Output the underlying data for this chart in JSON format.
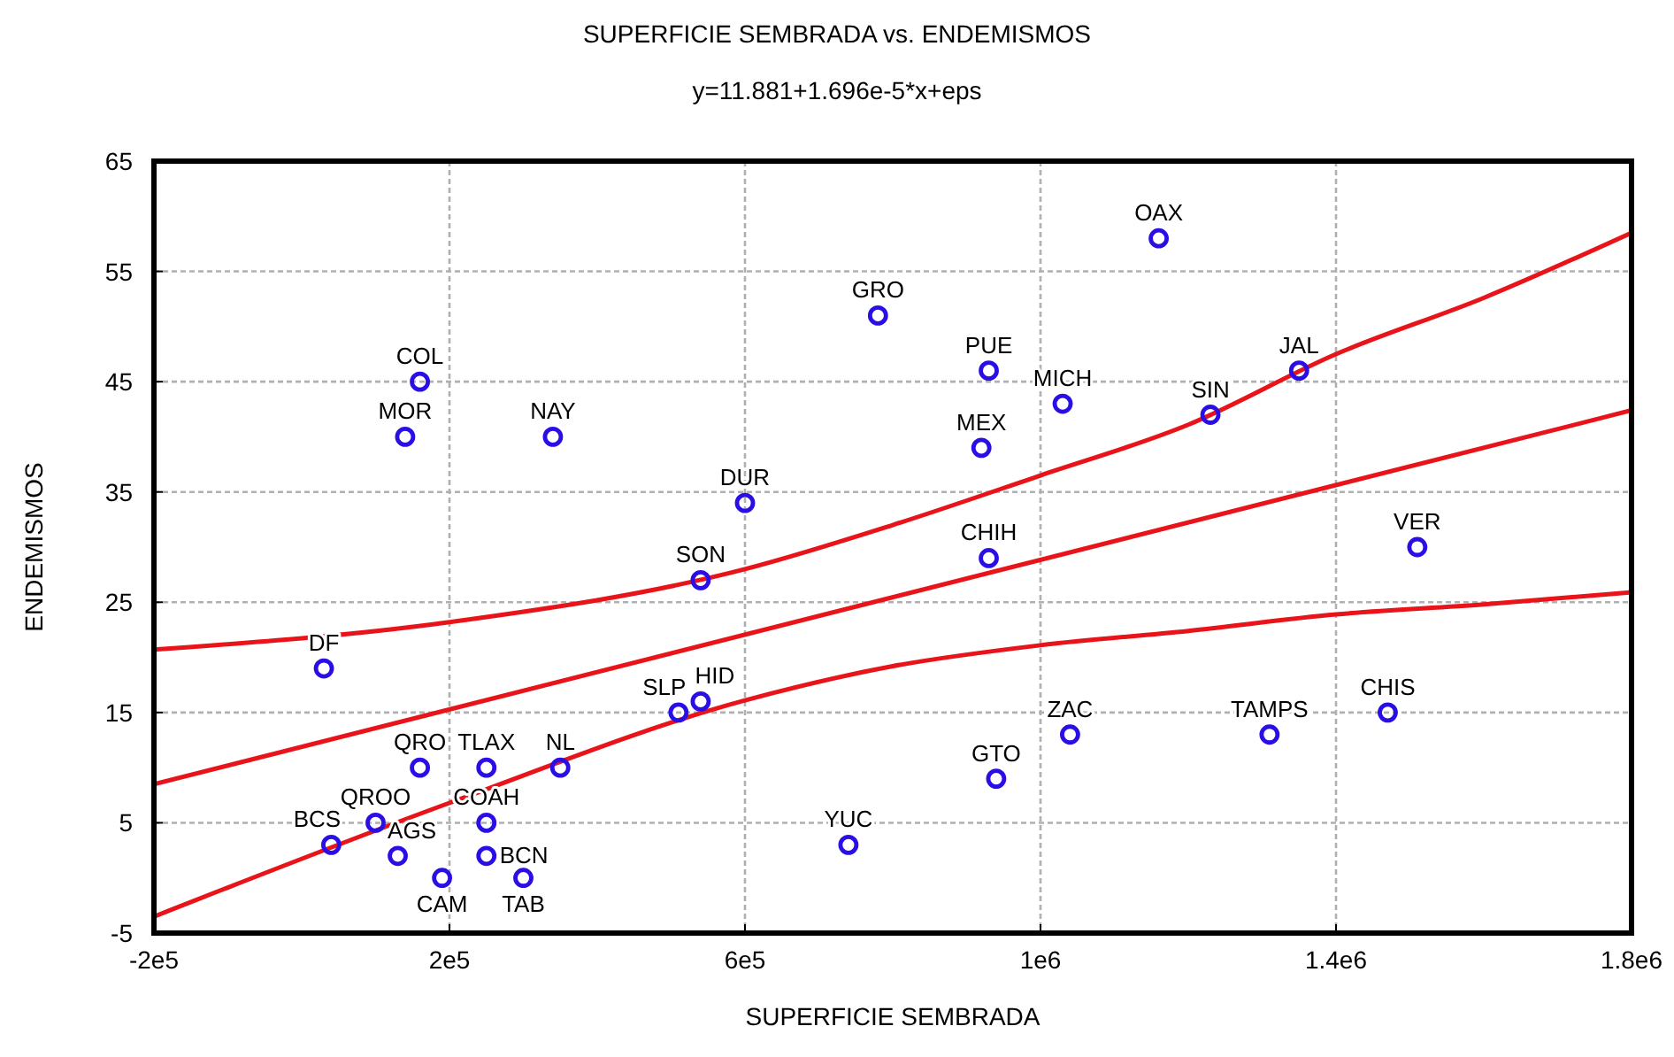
{
  "chart_data": {
    "type": "scatter",
    "title": "SUPERFICIE SEMBRADA vs. ENDEMISMOS",
    "subtitle": "y=11.881+1.696e-5*x+eps",
    "xlabel": "SUPERFICIE SEMBRADA",
    "ylabel": "ENDEMISMOS",
    "xlim": [
      -200000,
      1800000
    ],
    "xticks": [
      {
        "value": -200000,
        "label": "-2e5"
      },
      {
        "value": 200000,
        "label": "2e5"
      },
      {
        "value": 600000,
        "label": "6e5"
      },
      {
        "value": 1000000,
        "label": "1e6"
      },
      {
        "value": 1400000,
        "label": "1.4e6"
      },
      {
        "value": 1800000,
        "label": "1.8e6"
      }
    ],
    "ylim": [
      -5,
      65
    ],
    "yticks": [
      -5,
      5,
      15,
      25,
      35,
      45,
      55,
      65
    ],
    "grid": true,
    "marker": "circle",
    "line_style": "solid",
    "series": [
      {
        "color": "#2a0ee6",
        "x": [
          1160000,
          780000,
          930000,
          1030000,
          1230000,
          1350000,
          160000,
          140000,
          340000,
          920000,
          600000,
          1510000,
          540000,
          930000,
          30000,
          510000,
          540000,
          1470000,
          1040000,
          1310000,
          160000,
          250000,
          350000,
          940000,
          100000,
          250000,
          40000,
          130000,
          740000,
          250000,
          190000,
          300000
        ],
        "values": [
          58,
          51,
          46,
          43,
          42,
          46,
          45,
          40,
          40,
          39,
          34,
          30,
          27,
          29,
          19,
          15,
          16,
          15,
          13,
          13,
          10,
          10,
          10,
          9,
          5,
          5,
          3,
          2,
          3,
          2,
          0,
          0
        ]
      },
      {
        "type": "line",
        "marker": "none",
        "color": "#e8141a",
        "x": [
          -200000,
          1800000
        ],
        "values": [
          8.5,
          42.4
        ]
      },
      {
        "type": "line",
        "marker": "none",
        "color": "#e8141a",
        "x": [
          -200000,
          200000,
          600000,
          800000,
          1000000,
          1200000,
          1400000,
          1600000,
          1800000
        ],
        "values": [
          20.7,
          23.2,
          28,
          32,
          36.5,
          41.1,
          47.5,
          52.6,
          58.5
        ]
      },
      {
        "type": "line",
        "marker": "none",
        "color": "#e8141a",
        "x": [
          -200000,
          200000,
          600000,
          800000,
          1000000,
          1200000,
          1400000,
          1600000,
          1800000
        ],
        "values": [
          -3.5,
          6.8,
          16.1,
          19.2,
          21.1,
          22.4,
          23.9,
          24.8,
          25.9
        ]
      }
    ],
    "annotations": [
      {
        "text": "OAX",
        "x": 1160000,
        "y": 58
      },
      {
        "text": "GRO",
        "x": 780000,
        "y": 51
      },
      {
        "text": "PUE",
        "x": 930000,
        "y": 46
      },
      {
        "text": "MICH",
        "x": 1030000,
        "y": 43
      },
      {
        "text": "SIN",
        "x": 1230000,
        "y": 42
      },
      {
        "text": "JAL",
        "x": 1350000,
        "y": 46
      },
      {
        "text": "COL",
        "x": 160000,
        "y": 45
      },
      {
        "text": "MOR",
        "x": 140000,
        "y": 40
      },
      {
        "text": "NAY",
        "x": 340000,
        "y": 40
      },
      {
        "text": "MEX",
        "x": 920000,
        "y": 39
      },
      {
        "text": "DUR",
        "x": 600000,
        "y": 34
      },
      {
        "text": "VER",
        "x": 1510000,
        "y": 30
      },
      {
        "text": "SON",
        "x": 540000,
        "y": 27
      },
      {
        "text": "CHIH",
        "x": 930000,
        "y": 29
      },
      {
        "text": "DF",
        "x": 30000,
        "y": 19
      },
      {
        "text": "SLP",
        "x": 510000,
        "y": 15
      },
      {
        "text": "HID",
        "x": 540000,
        "y": 16
      },
      {
        "text": "CHIS",
        "x": 1470000,
        "y": 15
      },
      {
        "text": "ZAC",
        "x": 1040000,
        "y": 13
      },
      {
        "text": "TAMPS",
        "x": 1310000,
        "y": 13
      },
      {
        "text": "QRO",
        "x": 160000,
        "y": 10
      },
      {
        "text": "TLAX",
        "x": 250000,
        "y": 10
      },
      {
        "text": "NL",
        "x": 350000,
        "y": 10
      },
      {
        "text": "GTO",
        "x": 940000,
        "y": 9
      },
      {
        "text": "QROO",
        "x": 100000,
        "y": 5
      },
      {
        "text": "COAH",
        "x": 250000,
        "y": 5
      },
      {
        "text": "BCS",
        "x": 40000,
        "y": 3
      },
      {
        "text": "AGS",
        "x": 130000,
        "y": 2
      },
      {
        "text": "YUC",
        "x": 740000,
        "y": 3
      },
      {
        "text": "BCN",
        "x": 250000,
        "y": 2
      },
      {
        "text": "CAM",
        "x": 190000,
        "y": 0
      },
      {
        "text": "TAB",
        "x": 300000,
        "y": 0
      }
    ]
  }
}
